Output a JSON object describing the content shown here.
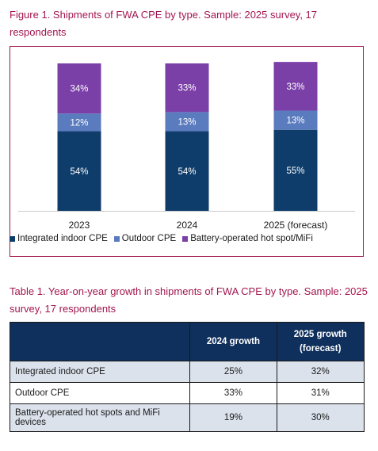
{
  "figure_title": "Figure 1. Shipments of FWA CPE by type. Sample: 2025 survey, 17 respondents",
  "chart_data": {
    "type": "bar",
    "stacked": true,
    "percent_stacked": true,
    "title": "Figure 1. Shipments of FWA CPE by type. Sample: 2025 survey, 17 respondents",
    "categories": [
      "2023",
      "2024",
      "2025 (forecast)"
    ],
    "series": [
      {
        "name": "Integrated indoor CPE",
        "values": [
          54,
          54,
          55
        ],
        "labels": [
          "54%",
          "54%",
          "55%"
        ],
        "color": "#0f3d6b"
      },
      {
        "name": "Outdoor CPE",
        "values": [
          12,
          13,
          13
        ],
        "labels": [
          "12%",
          "13%",
          "13%"
        ],
        "color": "#5b7bbf"
      },
      {
        "name": "Battery-operated hot spot/MiFi",
        "values": [
          34,
          33,
          33
        ],
        "labels": [
          "34%",
          "33%",
          "33%"
        ],
        "color": "#7b3fa8"
      }
    ],
    "ylim": [
      0,
      100
    ],
    "grid": false,
    "legend_position": "bottom"
  },
  "table": {
    "title": "Table 1. Year-on-year growth in shipments of FWA CPE by type. Sample: 2025 survey, 17 respondents",
    "headers": [
      "",
      "2024 growth",
      "2025 growth (forecast)"
    ],
    "rows": [
      {
        "label": "Integrated indoor CPE",
        "growth_2024": "25%",
        "growth_2025": "32%"
      },
      {
        "label": "Outdoor CPE",
        "growth_2024": "33%",
        "growth_2025": "31%"
      },
      {
        "label": "Battery-operated hot spots and MiFi devices",
        "growth_2024": "19%",
        "growth_2025": "30%"
      }
    ]
  },
  "colors": {
    "accent": "#a3164f",
    "header_bg": "#0f2f5c",
    "row_shade": "#dbe2ec"
  }
}
